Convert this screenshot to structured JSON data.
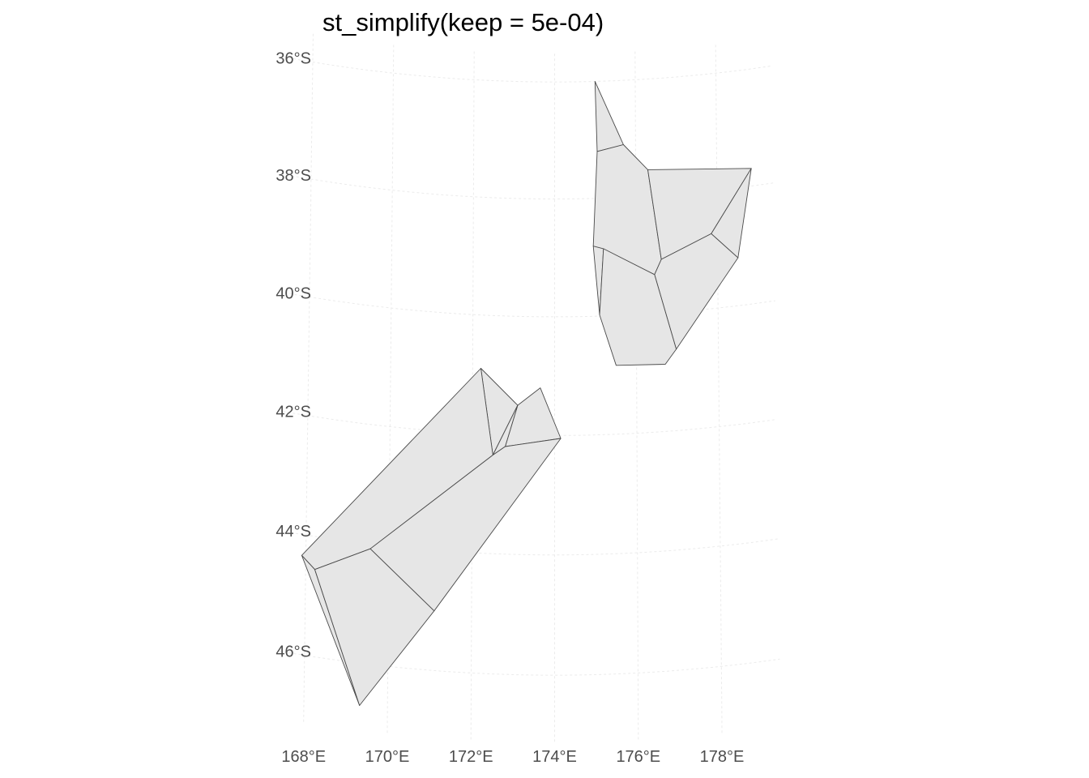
{
  "title": "st_simplify(keep = 5e-04)",
  "colors": {
    "fill": "#e6e6e6",
    "stroke": "#4a4a4a",
    "grid": "#ebebeb",
    "tick_text": "#4d4d4d"
  },
  "chart_data": {
    "type": "map",
    "title": "st_simplify(keep = 5e-04)",
    "xlabel": "",
    "ylabel": "",
    "xlim": [
      167.4,
      179.4
    ],
    "ylim": [
      -47.1,
      -35.5
    ],
    "grid": true,
    "x_ticks": [
      {
        "value": 168,
        "label": "168°E"
      },
      {
        "value": 170,
        "label": "170°E"
      },
      {
        "value": 172,
        "label": "172°E"
      },
      {
        "value": 174,
        "label": "174°E"
      },
      {
        "value": 176,
        "label": "176°E"
      },
      {
        "value": 178,
        "label": "178°E"
      }
    ],
    "y_ticks": [
      {
        "value": -36,
        "label": "36°S"
      },
      {
        "value": -38,
        "label": "38°S"
      },
      {
        "value": -40,
        "label": "40°S"
      },
      {
        "value": -42,
        "label": "42°S"
      },
      {
        "value": -44,
        "label": "44°S"
      },
      {
        "value": -46,
        "label": "46°S"
      }
    ],
    "regions": [
      {
        "coords": [
          [
            175.0,
            -36.0
          ],
          [
            175.7,
            -37.1
          ],
          [
            175.05,
            -37.2
          ]
        ]
      },
      {
        "coords": [
          [
            175.05,
            -37.2
          ],
          [
            175.7,
            -37.1
          ],
          [
            176.3,
            -37.55
          ],
          [
            176.62,
            -39.09
          ],
          [
            176.45,
            -39.34
          ],
          [
            174.95,
            -38.81
          ]
        ]
      },
      {
        "coords": [
          [
            176.3,
            -37.55
          ],
          [
            178.85,
            -37.7
          ],
          [
            177.85,
            -38.73
          ],
          [
            176.62,
            -39.09
          ]
        ]
      },
      {
        "coords": [
          [
            178.85,
            -37.7
          ],
          [
            178.5,
            -39.19
          ],
          [
            177.85,
            -38.73
          ]
        ]
      },
      {
        "coords": [
          [
            176.62,
            -39.09
          ],
          [
            177.85,
            -38.73
          ],
          [
            178.5,
            -39.19
          ],
          [
            176.97,
            -40.63
          ],
          [
            176.45,
            -39.34
          ]
        ]
      },
      {
        "coords": [
          [
            174.95,
            -38.81
          ],
          [
            175.2,
            -38.86
          ],
          [
            175.1,
            -39.98
          ]
        ]
      },
      {
        "coords": [
          [
            175.2,
            -38.86
          ],
          [
            176.45,
            -39.34
          ],
          [
            176.97,
            -40.63
          ],
          [
            176.7,
            -40.87
          ],
          [
            175.5,
            -40.84
          ],
          [
            175.1,
            -39.98
          ]
        ]
      },
      {
        "coords": [
          [
            172.2,
            -40.9
          ],
          [
            173.1,
            -41.5
          ],
          [
            172.5,
            -42.35
          ]
        ]
      },
      {
        "coords": [
          [
            173.1,
            -41.5
          ],
          [
            173.65,
            -41.2
          ],
          [
            174.15,
            -42.05
          ],
          [
            172.8,
            -42.2
          ]
        ]
      },
      {
        "coords": [
          [
            172.2,
            -40.9
          ],
          [
            172.5,
            -42.35
          ],
          [
            169.55,
            -44.08
          ],
          [
            168.22,
            -44.55
          ],
          [
            167.9,
            -44.35
          ]
        ]
      },
      {
        "coords": [
          [
            173.1,
            -41.5
          ],
          [
            172.8,
            -42.2
          ],
          [
            172.5,
            -42.35
          ]
        ]
      },
      {
        "coords": [
          [
            172.5,
            -42.35
          ],
          [
            172.8,
            -42.2
          ],
          [
            174.15,
            -42.05
          ],
          [
            171.1,
            -45.01
          ],
          [
            169.55,
            -44.08
          ]
        ]
      },
      {
        "coords": [
          [
            167.9,
            -44.35
          ],
          [
            168.22,
            -44.55
          ],
          [
            169.33,
            -46.7
          ]
        ]
      },
      {
        "coords": [
          [
            168.22,
            -44.55
          ],
          [
            169.55,
            -44.08
          ],
          [
            171.1,
            -45.01
          ],
          [
            169.33,
            -46.7
          ]
        ]
      }
    ]
  }
}
